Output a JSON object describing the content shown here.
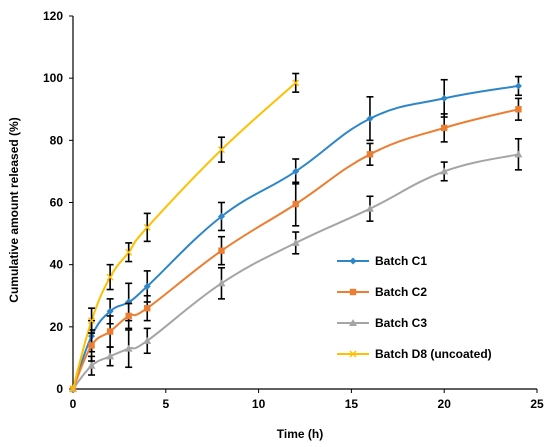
{
  "chart_data": {
    "type": "line",
    "title": "",
    "xlabel": "Time (h)",
    "ylabel": "Cumulative amount released (%)",
    "xlim": [
      0,
      25
    ],
    "ylim": [
      0,
      120
    ],
    "xticks": [
      "0",
      "5",
      "10",
      "15",
      "20",
      "25"
    ],
    "yticks": [
      "0",
      "20",
      "40",
      "60",
      "80",
      "100",
      "120"
    ],
    "grid": false,
    "legend_position": "right",
    "series": [
      {
        "name": "Batch C1",
        "color": "#2E86C9",
        "marker": "diamond",
        "x": [
          0,
          1,
          2,
          3,
          4,
          8,
          12,
          16,
          20,
          24
        ],
        "y": [
          0,
          17,
          25,
          28,
          33,
          55.5,
          70,
          87,
          93.5,
          97.5
        ],
        "err": [
          0,
          5,
          4,
          6,
          5,
          4.5,
          4,
          7,
          6,
          3
        ]
      },
      {
        "name": "Batch C2",
        "color": "#ED7D31",
        "marker": "square",
        "x": [
          0,
          1,
          2,
          3,
          4,
          8,
          12,
          16,
          20,
          24
        ],
        "y": [
          0,
          14,
          18.5,
          23.5,
          26,
          44.5,
          59.5,
          75.5,
          84,
          90
        ],
        "err": [
          0,
          5,
          5,
          4,
          4,
          4.5,
          7,
          3.5,
          4.5,
          3.5
        ]
      },
      {
        "name": "Batch C3",
        "color": "#A5A5A5",
        "marker": "triangle",
        "x": [
          0,
          1,
          2,
          3,
          4,
          8,
          12,
          16,
          20,
          24
        ],
        "y": [
          0,
          7.5,
          10.5,
          13,
          15.5,
          34,
          47,
          58,
          70,
          75.5
        ],
        "err": [
          0,
          3,
          3,
          6,
          4,
          5,
          3.5,
          4,
          3,
          5
        ]
      },
      {
        "name": "Batch D8 (uncoated)",
        "color": "#FFC000",
        "marker": "x",
        "x": [
          0,
          1,
          2,
          3,
          4,
          8,
          12
        ],
        "y": [
          0,
          22,
          36,
          44,
          52,
          77,
          98.5
        ],
        "err": [
          0,
          4,
          4,
          3,
          4.5,
          4,
          3
        ]
      }
    ]
  }
}
